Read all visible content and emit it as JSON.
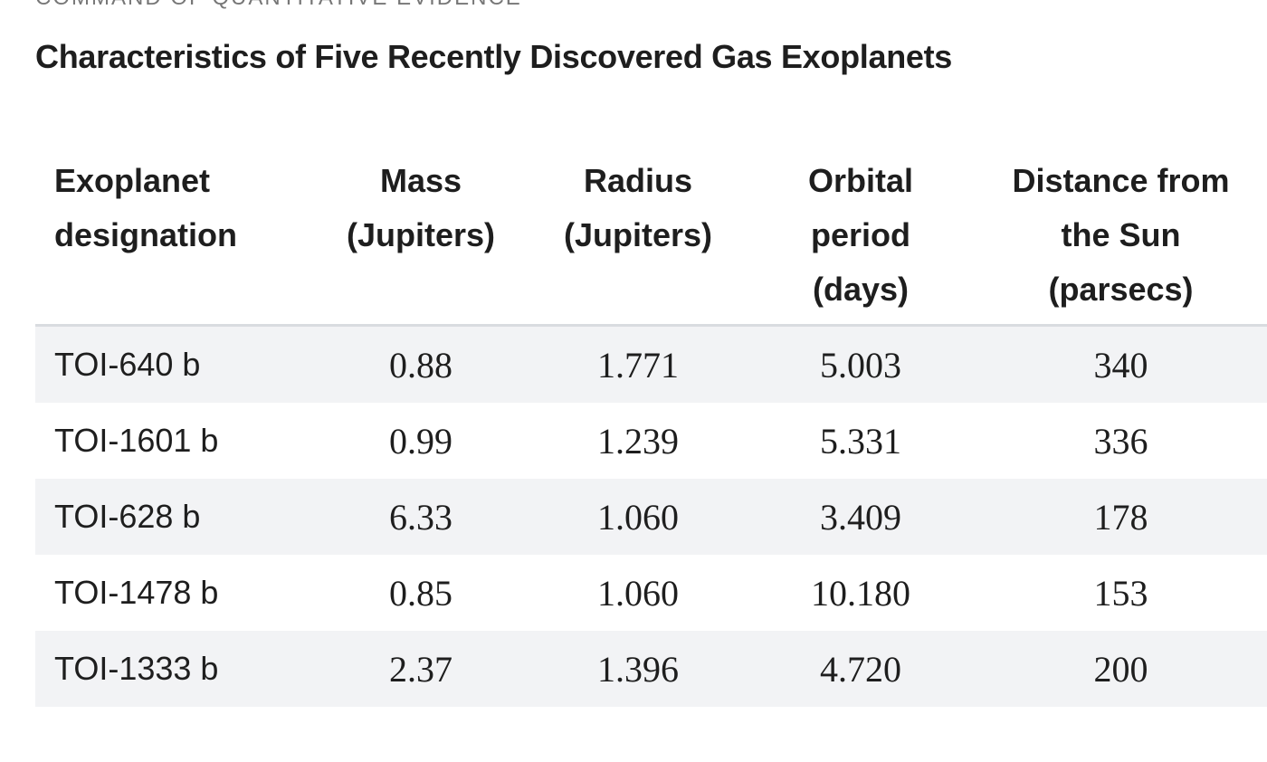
{
  "header": {
    "label": "COMMAND OF QUANTITATIVE EVIDENCE",
    "title": "Characteristics of Five Recently Discovered Gas Exoplanets"
  },
  "table": {
    "columns": [
      [
        "Exoplanet",
        "designation"
      ],
      [
        "Mass",
        "(Jupiters)"
      ],
      [
        "Radius",
        "(Jupiters)"
      ],
      [
        "Orbital",
        "period",
        "(days)"
      ],
      [
        "Distance from",
        "the Sun",
        "(parsecs)"
      ]
    ],
    "rows": [
      [
        "TOI-640 b",
        "0.88",
        "1.771",
        "5.003",
        "340"
      ],
      [
        "TOI-1601 b",
        "0.99",
        "1.239",
        "5.331",
        "336"
      ],
      [
        "TOI-628 b",
        "6.33",
        "1.060",
        "3.409",
        "178"
      ],
      [
        "TOI-1478 b",
        "0.85",
        "1.060",
        "10.180",
        "153"
      ],
      [
        "TOI-1333 b",
        "2.37",
        "1.396",
        "4.720",
        "200"
      ]
    ]
  }
}
